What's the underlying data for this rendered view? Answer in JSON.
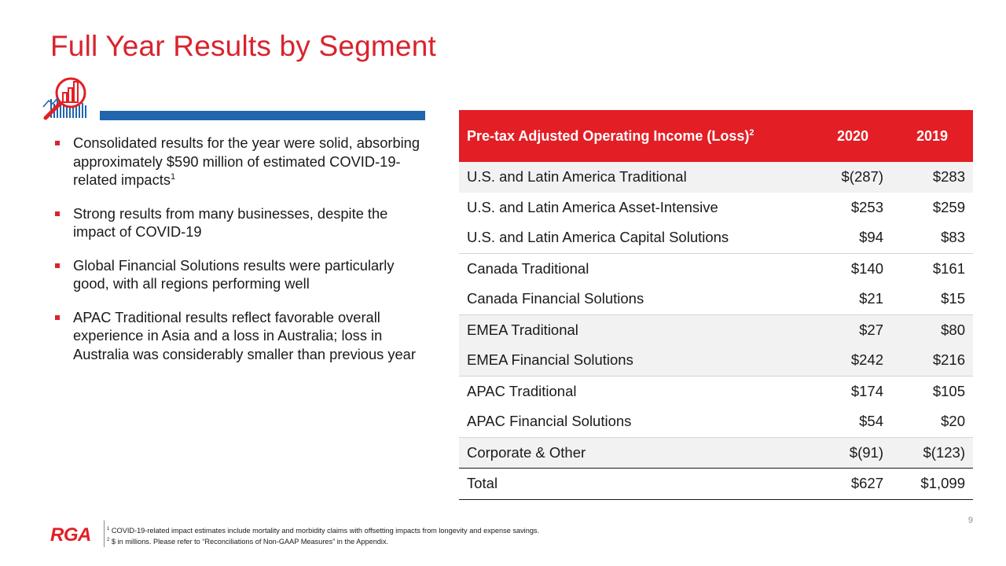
{
  "title": "Full Year Results by Segment",
  "bullets": [
    {
      "text": "Consolidated results for the year were solid, absorbing approximately $590 million of estimated COVID-19-related impacts",
      "sup": "1"
    },
    {
      "text": "Strong results from many businesses, despite the impact of COVID-19",
      "sup": ""
    },
    {
      "text": "Global Financial Solutions results were particularly good, with all regions performing well",
      "sup": ""
    },
    {
      "text": "APAC Traditional results reflect favorable overall experience in Asia and a loss in Australia; loss in Australia was considerably smaller than previous year",
      "sup": ""
    }
  ],
  "table": {
    "header": {
      "label": "Pre-tax Adjusted Operating Income (Loss)",
      "label_sup": "2",
      "col1": "2020",
      "col2": "2019"
    },
    "rows": [
      {
        "label": "U.S. and Latin America Traditional",
        "v2020": "$(287)",
        "v2019": "$283"
      },
      {
        "label": "U.S. and Latin America Asset-Intensive",
        "v2020": "$253",
        "v2019": "$259"
      },
      {
        "label": "U.S. and Latin America Capital Solutions",
        "v2020": "$94",
        "v2019": "$83"
      },
      {
        "label": "Canada Traditional",
        "v2020": "$140",
        "v2019": "$161"
      },
      {
        "label": "Canada Financial Solutions",
        "v2020": "$21",
        "v2019": "$15"
      },
      {
        "label": "EMEA Traditional",
        "v2020": "$27",
        "v2019": "$80"
      },
      {
        "label": "EMEA Financial Solutions",
        "v2020": "$242",
        "v2019": "$216"
      },
      {
        "label": "APAC Traditional",
        "v2020": "$174",
        "v2019": "$105"
      },
      {
        "label": "APAC Financial Solutions",
        "v2020": "$54",
        "v2019": "$20"
      },
      {
        "label": "Corporate & Other",
        "v2020": "$(91)",
        "v2019": "$(123)"
      },
      {
        "label": "Total",
        "v2020": "$627",
        "v2019": "$1,099"
      }
    ]
  },
  "footnotes": [
    {
      "sup": "1",
      "text": "COVID-19-related impact estimates include mortality and morbidity claims with offsetting impacts from longevity and expense savings."
    },
    {
      "sup": "2",
      "text": "$ in millions. Please refer to “Reconciliations of Non-GAAP Measures” in the Appendix."
    }
  ],
  "logo": "RGA",
  "page_number": "9",
  "icon": "chart-magnifier-icon",
  "colors": {
    "accent_red": "#e31e24",
    "title_red": "#d9232d",
    "rule_blue": "#1f66ad",
    "row_shade": "#f2f2f2"
  }
}
